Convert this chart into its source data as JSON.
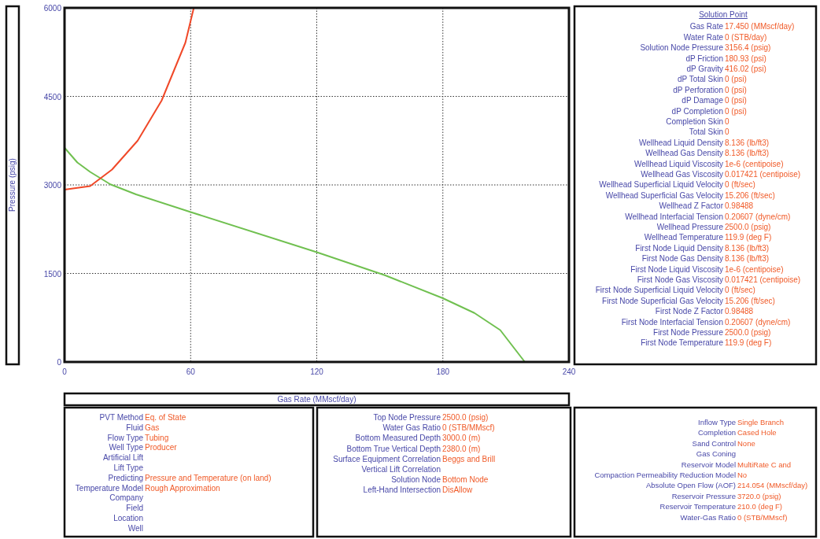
{
  "chart_data": [
    {
      "type": "line",
      "xlabel": "Gas Rate  (MMscf/day)",
      "ylabel": "Pressure  (psig)",
      "xlim": [
        0,
        240
      ],
      "ylim": [
        0,
        6000
      ],
      "xticks": [
        0,
        60,
        120,
        180,
        240
      ],
      "yticks": [
        0,
        1500,
        3000,
        4500,
        6000
      ],
      "grid": true,
      "marker": "none",
      "line_style": "solid",
      "series": [
        {
          "color": "#70c050",
          "x": [
            0,
            6.1,
            12.2,
            21.8,
            34,
            60,
            120,
            152.4,
            180,
            195,
            207.3,
            219
          ],
          "values": [
            3630,
            3380,
            3220,
            3010,
            2840,
            2540,
            1860,
            1470,
            1080,
            830,
            540,
            0
          ]
        },
        {
          "color": "#f04828",
          "x": [
            0,
            12.2,
            22.6,
            34.8,
            46.2,
            57.5,
            61.5
          ],
          "values": [
            2920,
            2980,
            3260,
            3750,
            4430,
            5410,
            6000
          ]
        }
      ]
    },
    {
      "type": "other",
      "title": "Solution Point",
      "categories": [
        "Gas Rate",
        "Water Rate",
        "Solution Node Pressure",
        "dP Friction",
        "dP Gravity",
        "dP Total Skin",
        "dP Perforation",
        "dP Damage",
        "dP Completion",
        "Completion Skin",
        "Total Skin",
        "Wellhead Liquid Density",
        "Wellhead Gas Density",
        "Wellhead Liquid Viscosity",
        "Wellhead Gas Viscosity",
        "Wellhead Superficial Liquid Velocity",
        "Wellhead Superficial Gas Velocity",
        "Wellhead Z Factor",
        "Wellhead Interfacial Tension",
        "Wellhead Pressure",
        "Wellhead Temperature",
        "First Node Liquid Density",
        "First Node Gas Density",
        "First Node Liquid Viscosity",
        "First Node Gas Viscosity",
        "First Node Superficial Liquid Velocity",
        "First Node Superficial Gas Velocity",
        "First Node Z Factor",
        "First Node Interfacial Tension",
        "First Node Pressure",
        "First Node Temperature"
      ],
      "value_labels": [
        "17.450 (MMscf/day)",
        "0 (STB/day)",
        "3156.4 (psig)",
        "180.93 (psi)",
        "416.02 (psi)",
        "0 (psi)",
        "0 (psi)",
        "0 (psi)",
        "0 (psi)",
        "0",
        "0",
        "8.136 (lb/ft3)",
        "8.136 (lb/ft3)",
        "1e-6 (centipoise)",
        "0.017421 (centipoise)",
        "0 (ft/sec)",
        "15.206 (ft/sec)",
        "0.98488",
        "0.20607 (dyne/cm)",
        "2500.0 (psig)",
        "119.9 (deg F)",
        "8.136 (lb/ft3)",
        "8.136 (lb/ft3)",
        "1e-6 (centipoise)",
        "0.017421 (centipoise)",
        "0 (ft/sec)",
        "15.206 (ft/sec)",
        "0.98488",
        "0.20607 (dyne/cm)",
        "2500.0 (psig)",
        "119.9 (deg F)"
      ]
    },
    {
      "type": "other",
      "categories": [
        "PVT Method",
        "Fluid",
        "Flow Type",
        "Well Type",
        "Artificial Lift",
        "Lift Type",
        "Predicting",
        "Temperature Model",
        "Company",
        "Field",
        "Location",
        "Well"
      ],
      "value_labels": [
        "Eq. of State",
        "Gas",
        "Tubing",
        "Producer",
        null,
        null,
        "Pressure and Temperature (on land)",
        "Rough Approximation",
        null,
        null,
        null,
        null
      ]
    },
    {
      "type": "other",
      "categories": [
        "Top Node Pressure",
        "Water Gas Ratio",
        "Bottom Measured Depth",
        "Bottom True Vertical Depth",
        "Surface Equipment Correlation",
        "Vertical Lift Correlation",
        "Solution Node",
        "Left-Hand Intersection"
      ],
      "value_labels": [
        "2500.0 (psig)",
        "0 (STB/MMscf)",
        "3000.0 (m)",
        "2380.0 (m)",
        "Beggs and Brill",
        null,
        "Bottom Node",
        "DisAllow"
      ]
    },
    {
      "type": "other",
      "categories": [
        "Inflow Type",
        "Completion",
        "Sand Control",
        "Gas Coning",
        "Reservoir Model",
        "Compaction Permeability Reduction Model",
        "Absolute Open Flow (AOF)",
        "Reservoir Pressure",
        "Reservoir Temperature",
        "Water-Gas Ratio"
      ],
      "value_labels": [
        "Single Branch",
        "Cased Hole",
        "None",
        null,
        "MultiRate C and",
        "No",
        "214.054 (MMscf/day)",
        "3720.0 (psig)",
        "210.0 (deg F)",
        "0 (STB/MMscf)"
      ]
    }
  ]
}
